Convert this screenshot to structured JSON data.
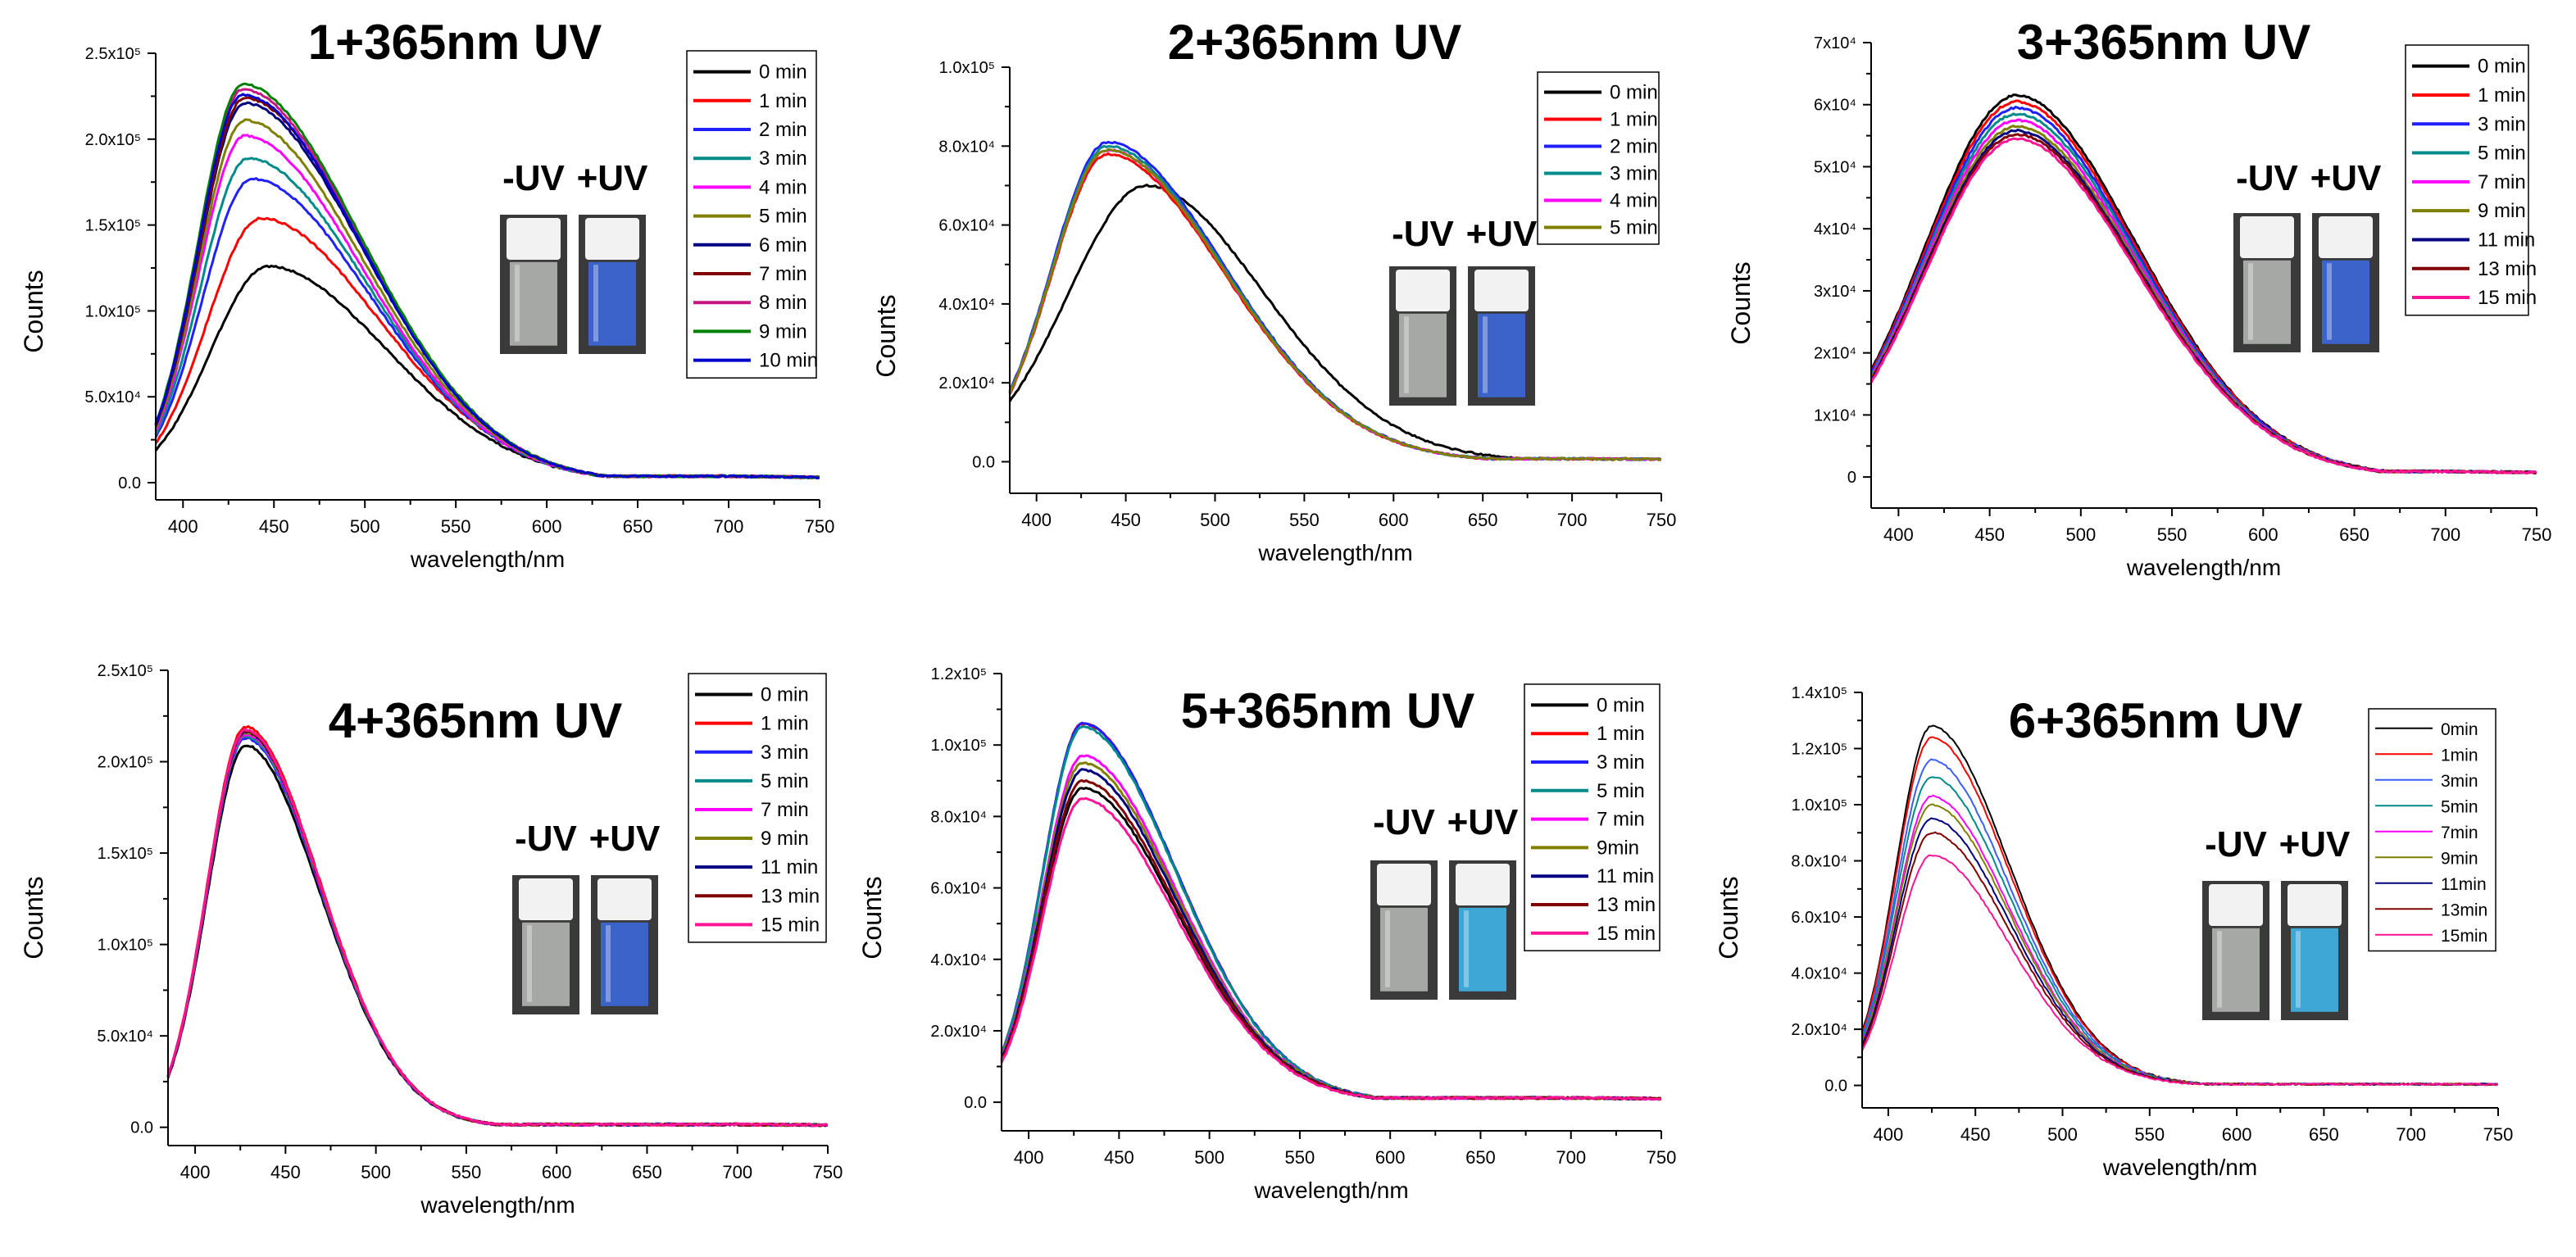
{
  "chart_data": [
    {
      "type": "line",
      "title": "1+365nm UV",
      "xlabel": "wavelength/nm",
      "ylabel": "Counts",
      "xlim": [
        385,
        750
      ],
      "ylim": [
        -10000,
        250000
      ],
      "xticks": [
        400,
        450,
        500,
        550,
        600,
        650,
        700,
        750
      ],
      "yticks": [
        {
          "v": 0,
          "t": "0.0"
        },
        {
          "v": 50000,
          "t": "5.0x10⁴"
        },
        {
          "v": 100000,
          "t": "1.0x10⁵"
        },
        {
          "v": 150000,
          "t": "1.5x10⁵"
        },
        {
          "v": 200000,
          "t": "2.0x10⁵"
        },
        {
          "v": 250000,
          "t": "2.5x10⁵"
        }
      ],
      "peak_nm": 443,
      "start_ratio": 0.15,
      "end_value": 2500,
      "series": [
        {
          "name": "0 min",
          "color": "#000000",
          "peak": 126000,
          "peak_nm": 447
        },
        {
          "name": "1 min",
          "color": "#ff0000",
          "peak": 154000
        },
        {
          "name": "2 min",
          "color": "#2020ff",
          "peak": 177000,
          "peak_nm": 438
        },
        {
          "name": "3 min",
          "color": "#008b8b",
          "peak": 189000,
          "peak_nm": 436
        },
        {
          "name": "4 min",
          "color": "#ff00ff",
          "peak": 202000,
          "peak_nm": 434
        },
        {
          "name": "5 min",
          "color": "#808000",
          "peak": 211000,
          "peak_nm": 434
        },
        {
          "name": "6 min",
          "color": "#000080",
          "peak": 221000,
          "peak_nm": 434
        },
        {
          "name": "7 min",
          "color": "#800000",
          "peak": 224000,
          "peak_nm": 434
        },
        {
          "name": "8 min",
          "color": "#c71585",
          "peak": 229000,
          "peak_nm": 433
        },
        {
          "name": "9 min",
          "color": "#008000",
          "peak": 232000,
          "peak_nm": 433
        },
        {
          "name": "10 min",
          "color": "#0000cd",
          "peak": 226000,
          "peak_nm": 433
        }
      ],
      "photo_labels": {
        "minus": "-UV",
        "plus": "+UV"
      }
    },
    {
      "type": "line",
      "title": "2+365nm UV",
      "xlabel": "wavelength/nm",
      "ylabel": "Counts",
      "xlim": [
        385,
        750
      ],
      "ylim": [
        -8000,
        100000
      ],
      "xticks": [
        400,
        450,
        500,
        550,
        600,
        650,
        700,
        750
      ],
      "yticks": [
        {
          "v": 0,
          "t": "0.0"
        },
        {
          "v": 20000,
          "t": "2.0x10⁴"
        },
        {
          "v": 40000,
          "t": "4.0x10⁴"
        },
        {
          "v": 60000,
          "t": "6.0x10⁴"
        },
        {
          "v": 80000,
          "t": "8.0x10⁴"
        },
        {
          "v": 100000,
          "t": "1.0x10⁵"
        }
      ],
      "peak_nm": 440,
      "start_ratio": 0.22,
      "end_value": 500,
      "series": [
        {
          "name": "0 min",
          "color": "#000000",
          "peak": 70000,
          "peak_nm": 462
        },
        {
          "name": "1 min",
          "color": "#ff0000",
          "peak": 78000
        },
        {
          "name": "2 min",
          "color": "#2020ff",
          "peak": 81000
        },
        {
          "name": "3 min",
          "color": "#008b8b",
          "peak": 80000
        },
        {
          "name": "4 min",
          "color": "#ff00ff",
          "peak": 79000
        },
        {
          "name": "5 min",
          "color": "#808000",
          "peak": 79000
        }
      ],
      "photo_labels": {
        "minus": "-UV",
        "plus": "+UV"
      }
    },
    {
      "type": "line",
      "title": "3+365nm UV",
      "xlabel": "wavelength/nm",
      "ylabel": "Counts",
      "xlim": [
        385,
        750
      ],
      "ylim": [
        -5000,
        70000
      ],
      "xticks": [
        400,
        450,
        500,
        550,
        600,
        650,
        700,
        750
      ],
      "yticks": [
        {
          "v": 0,
          "t": "0"
        },
        {
          "v": 10000,
          "t": "1x10⁴"
        },
        {
          "v": 20000,
          "t": "2x10⁴"
        },
        {
          "v": 30000,
          "t": "3x10⁴"
        },
        {
          "v": 40000,
          "t": "4x10⁴"
        },
        {
          "v": 50000,
          "t": "5x10⁴"
        },
        {
          "v": 60000,
          "t": "6x10⁴"
        },
        {
          "v": 70000,
          "t": "7x10⁴"
        }
      ],
      "peak_nm": 465,
      "start_ratio": 0.28,
      "end_value": 600,
      "series": [
        {
          "name": "0 min",
          "color": "#000000",
          "peak": 61500
        },
        {
          "name": "1 min",
          "color": "#ff0000",
          "peak": 60500
        },
        {
          "name": "3 min",
          "color": "#2020ff",
          "peak": 59500
        },
        {
          "name": "5 min",
          "color": "#008b8b",
          "peak": 58500
        },
        {
          "name": "7 min",
          "color": "#ff00ff",
          "peak": 57500
        },
        {
          "name": "9 min",
          "color": "#808000",
          "peak": 56500
        },
        {
          "name": "11 min",
          "color": "#000080",
          "peak": 55800
        },
        {
          "name": "13 min",
          "color": "#800000",
          "peak": 55200
        },
        {
          "name": "15 min",
          "color": "#ff1493",
          "peak": 54500
        }
      ],
      "photo_labels": {
        "minus": "-UV",
        "plus": "+UV"
      }
    },
    {
      "type": "line",
      "title": "4+365nm UV",
      "xlabel": "wavelength/nm",
      "ylabel": "Counts",
      "xlim": [
        385,
        750
      ],
      "ylim": [
        -10000,
        250000
      ],
      "xticks": [
        400,
        450,
        500,
        550,
        600,
        650,
        700,
        750
      ],
      "yticks": [
        {
          "v": 0,
          "t": "0.0"
        },
        {
          "v": 50000,
          "t": "5.0x10⁴"
        },
        {
          "v": 100000,
          "t": "1.0x10⁵"
        },
        {
          "v": 150000,
          "t": "1.5x10⁵"
        },
        {
          "v": 200000,
          "t": "2.0x10⁵"
        },
        {
          "v": 250000,
          "t": "2.5x10⁵"
        }
      ],
      "peak_nm": 428,
      "start_ratio": 0.13,
      "end_value": 1000,
      "width_left": 35,
      "width_right": 60,
      "series": [
        {
          "name": "0 min",
          "color": "#000000",
          "peak": 209000
        },
        {
          "name": "1 min",
          "color": "#ff0000",
          "peak": 219000
        },
        {
          "name": "3 min",
          "color": "#2020ff",
          "peak": 213000
        },
        {
          "name": "5 min",
          "color": "#008b8b",
          "peak": 214000
        },
        {
          "name": "7 min",
          "color": "#ff00ff",
          "peak": 215000
        },
        {
          "name": "9 min",
          "color": "#808000",
          "peak": 216000
        },
        {
          "name": "11 min",
          "color": "#000080",
          "peak": 216500
        },
        {
          "name": "13 min",
          "color": "#800000",
          "peak": 217000
        },
        {
          "name": "15 min",
          "color": "#ff1493",
          "peak": 217500
        }
      ],
      "photo_labels": {
        "minus": "-UV",
        "plus": "+UV"
      }
    },
    {
      "type": "line",
      "title": "5+365nm UV",
      "xlabel": "wavelength/nm",
      "ylabel": "Counts",
      "xlim": [
        385,
        750
      ],
      "ylim": [
        -8000,
        120000
      ],
      "xticks": [
        400,
        450,
        500,
        550,
        600,
        650,
        700,
        750
      ],
      "yticks": [
        {
          "v": 0,
          "t": "0.0"
        },
        {
          "v": 20000,
          "t": "2.0x10⁴"
        },
        {
          "v": 40000,
          "t": "4.0x10⁴"
        },
        {
          "v": 60000,
          "t": "6.0x10⁴"
        },
        {
          "v": 80000,
          "t": "8.0x10⁴"
        },
        {
          "v": 100000,
          "t": "1.0x10⁵"
        },
        {
          "v": 120000,
          "t": "1.2x10⁵"
        }
      ],
      "peak_nm": 430,
      "start_ratio": 0.13,
      "end_value": 800,
      "width_left": 35,
      "width_right": 75,
      "series": [
        {
          "name": "0 min",
          "color": "#000000",
          "peak": 88000
        },
        {
          "name": "1 min",
          "color": "#ff0000",
          "peak": 106000
        },
        {
          "name": "3 min",
          "color": "#2020ff",
          "peak": 106000
        },
        {
          "name": "5 min",
          "color": "#008b8b",
          "peak": 105000
        },
        {
          "name": "7 min",
          "color": "#ff00ff",
          "peak": 97000
        },
        {
          "name": "9min",
          "color": "#808000",
          "peak": 95000
        },
        {
          "name": "11 min",
          "color": "#000080",
          "peak": 93000
        },
        {
          "name": "13 min",
          "color": "#800000",
          "peak": 90000
        },
        {
          "name": "15 min",
          "color": "#ff1493",
          "peak": 85000
        }
      ],
      "photo_labels": {
        "minus": "-UV",
        "plus": "+UV"
      }
    },
    {
      "type": "line",
      "title": "6+365nm UV",
      "xlabel": "wavelength/nm",
      "ylabel": "Counts",
      "xlim": [
        385,
        750
      ],
      "ylim": [
        -8000,
        140000
      ],
      "xticks": [
        400,
        450,
        500,
        550,
        600,
        650,
        700,
        750
      ],
      "yticks": [
        {
          "v": 0,
          "t": "0.0"
        },
        {
          "v": 20000,
          "t": "2.0x10⁴"
        },
        {
          "v": 40000,
          "t": "4.0x10⁴"
        },
        {
          "v": 60000,
          "t": "6.0x10⁴"
        },
        {
          "v": 80000,
          "t": "8.0x10⁴"
        },
        {
          "v": 100000,
          "t": "1.0x10⁵"
        },
        {
          "v": 120000,
          "t": "1.2x10⁵"
        },
        {
          "v": 140000,
          "t": "1.4x10⁵"
        }
      ],
      "peak_nm": 425,
      "start_ratio": 0.15,
      "end_value": 300,
      "width_left": 30,
      "width_right": 65,
      "series": [
        {
          "name": "0min",
          "color": "#000000",
          "peak": 128000
        },
        {
          "name": "1min",
          "color": "#ff0000",
          "peak": 124000
        },
        {
          "name": "3min",
          "color": "#3a5fff",
          "peak": 116000
        },
        {
          "name": "5min",
          "color": "#008b8b",
          "peak": 110000
        },
        {
          "name": "7min",
          "color": "#ff00ff",
          "peak": 103000
        },
        {
          "name": "9min",
          "color": "#808000",
          "peak": 100000
        },
        {
          "name": "11min",
          "color": "#000080",
          "peak": 95000
        },
        {
          "name": "13min",
          "color": "#800000",
          "peak": 90000
        },
        {
          "name": "15min",
          "color": "#ff1493",
          "peak": 82000
        }
      ],
      "photo_labels": {
        "minus": "-UV",
        "plus": "+UV"
      }
    }
  ]
}
